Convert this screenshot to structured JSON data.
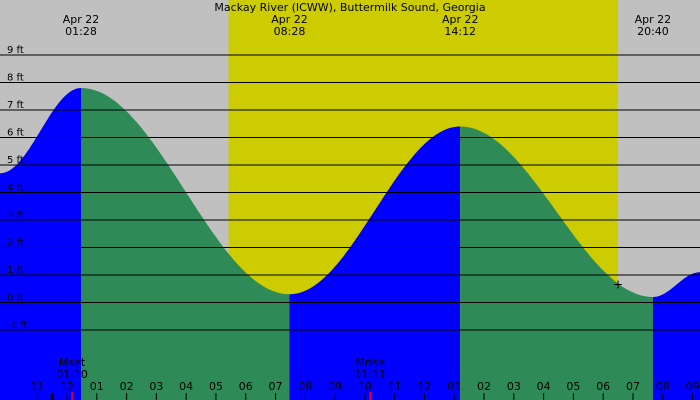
{
  "chart_data": {
    "type": "area",
    "title": "Mackay River (ICWW), Buttermilk Sound, Georgia",
    "ylabel": "",
    "xlabel": "",
    "x_range_hours": [
      -0.25,
      23.25
    ],
    "ylim": [
      -2,
      10
    ],
    "y_ticks": [
      {
        "value": 9,
        "label": "9 ft"
      },
      {
        "value": 8,
        "label": "8 ft"
      },
      {
        "value": 7,
        "label": "7 ft"
      },
      {
        "value": 6,
        "label": "6 ft"
      },
      {
        "value": 5,
        "label": "5 ft"
      },
      {
        "value": 4,
        "label": "4 ft"
      },
      {
        "value": 3,
        "label": "3 ft"
      },
      {
        "value": 2,
        "label": "2 ft"
      },
      {
        "value": 1,
        "label": "1 ft"
      },
      {
        "value": 0,
        "label": "0 ft"
      },
      {
        "value": -1,
        "label": "-1 ft"
      }
    ],
    "x_tick_labels": [
      {
        "hour": 0,
        "label": "11"
      },
      {
        "hour": 1,
        "label": "12"
      },
      {
        "hour": 2,
        "label": "01"
      },
      {
        "hour": 3,
        "label": "02"
      },
      {
        "hour": 4,
        "label": "03"
      },
      {
        "hour": 5,
        "label": "04"
      },
      {
        "hour": 6,
        "label": "05"
      },
      {
        "hour": 7,
        "label": "06"
      },
      {
        "hour": 8,
        "label": "07"
      },
      {
        "hour": 9,
        "label": "08"
      },
      {
        "hour": 10,
        "label": "09"
      },
      {
        "hour": 11,
        "label": "10"
      },
      {
        "hour": 12,
        "label": "11"
      },
      {
        "hour": 13,
        "label": "12"
      },
      {
        "hour": 14,
        "label": "01"
      },
      {
        "hour": 15,
        "label": "02"
      },
      {
        "hour": 16,
        "label": "03"
      },
      {
        "hour": 17,
        "label": "04"
      },
      {
        "hour": 18,
        "label": "05"
      },
      {
        "hour": 19,
        "label": "06"
      },
      {
        "hour": 20,
        "label": "07"
      },
      {
        "hour": 21,
        "label": "08"
      },
      {
        "hour": 22,
        "label": "09"
      }
    ],
    "tide_extremes": [
      {
        "date": "Apr 22",
        "time": "01:28",
        "hour": 2.47,
        "height": 7.8,
        "type": "high"
      },
      {
        "date": "Apr 22",
        "time": "08:28",
        "hour": 9.47,
        "height": 0.3,
        "type": "low"
      },
      {
        "date": "Apr 22",
        "time": "14:12",
        "hour": 15.2,
        "height": 6.4,
        "type": "high"
      },
      {
        "date": "Apr 22",
        "time": "20:40",
        "hour": 21.67,
        "height": 0.2,
        "type": "low"
      }
    ],
    "curve_edges": [
      {
        "hour": -0.25,
        "height": 4.7
      },
      {
        "hour": 23.25,
        "height": 1.1
      }
    ],
    "daylight": {
      "start_hour": 7.42,
      "end_hour": 20.5
    },
    "moon_events": [
      {
        "label": "Mset",
        "time": "01:10",
        "hour": 2.17
      },
      {
        "label": "Mrise",
        "time": "11:11",
        "hour": 12.18
      }
    ],
    "marker": {
      "symbol": "+",
      "hour": 20.5,
      "height": 0.65
    },
    "colors": {
      "night": "#c0c0c0",
      "day": "#cccc00",
      "rising": "#0000ff",
      "falling": "#2e8b57",
      "gridline": "#000000",
      "moon_tick": "#ff0000"
    }
  }
}
